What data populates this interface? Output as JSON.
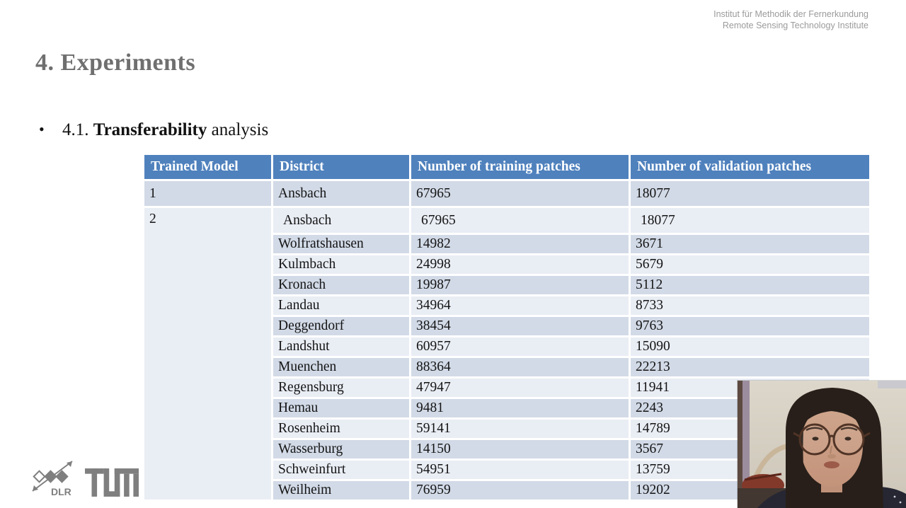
{
  "header": {
    "institute_line1": "Institut für Methodik der Fernerkundung",
    "institute_line2": "Remote Sensing Technology Institute"
  },
  "slide": {
    "title": "4. Experiments",
    "bullet_glyph": "•",
    "subtitle_prefix": "4.1. ",
    "subtitle_bold": "Transferability",
    "subtitle_suffix": " analysis"
  },
  "table": {
    "headers": [
      "Trained Model",
      "District",
      "Number of training patches",
      "Number of validation patches"
    ],
    "rows": [
      {
        "model": "1",
        "district": "Ansbach",
        "training": "67965",
        "validation": "18077",
        "band": "dark",
        "indent": false
      },
      {
        "model": "2",
        "district": "Ansbach",
        "training": "67965",
        "validation": "18077",
        "band": "light",
        "indent": true
      },
      {
        "model": "",
        "district": "Wolfratshausen",
        "training": "14982",
        "validation": "3671",
        "band": "dark",
        "indent": false
      },
      {
        "model": "",
        "district": "Kulmbach",
        "training": "24998",
        "validation": "5679",
        "band": "light",
        "indent": false
      },
      {
        "model": "",
        "district": "Kronach",
        "training": "19987",
        "validation": "5112",
        "band": "dark",
        "indent": false
      },
      {
        "model": "",
        "district": "Landau",
        "training": "34964",
        "validation": "8733",
        "band": "light",
        "indent": false
      },
      {
        "model": "",
        "district": "Deggendorf",
        "training": "38454",
        "validation": "9763",
        "band": "dark",
        "indent": false
      },
      {
        "model": "",
        "district": "Landshut",
        "training": "60957",
        "validation": "15090",
        "band": "light",
        "indent": false
      },
      {
        "model": "",
        "district": "Muenchen",
        "training": "88364",
        "validation": "22213",
        "band": "dark",
        "indent": false
      },
      {
        "model": "",
        "district": "Regensburg",
        "training": "47947",
        "validation": "11941",
        "band": "light",
        "indent": false
      },
      {
        "model": "",
        "district": "Hemau",
        "training": "9481",
        "validation": "2243",
        "band": "dark",
        "indent": false
      },
      {
        "model": "",
        "district": "Rosenheim",
        "training": "59141",
        "validation": "14789",
        "band": "light",
        "indent": false
      },
      {
        "model": "",
        "district": "Wasserburg",
        "training": "14150",
        "validation": "3567",
        "band": "dark",
        "indent": false
      },
      {
        "model": "",
        "district": "Schweinfurt",
        "training": "54951",
        "validation": "13759",
        "band": "light",
        "indent": false
      },
      {
        "model": "",
        "district": "Weilheim",
        "training": "76959",
        "validation": "19202",
        "band": "dark",
        "indent": false
      }
    ]
  },
  "footer": {
    "dlr_label": "DLR",
    "tum_logo_name": "tum-logo"
  },
  "colors": {
    "header_blue": "#4f81bd",
    "band_dark": "#d2dae7",
    "band_light": "#e9edf4",
    "title_gray": "#6f6f6f",
    "institute_gray": "#9b9b9b",
    "logo_gray": "#7f7f7f"
  }
}
